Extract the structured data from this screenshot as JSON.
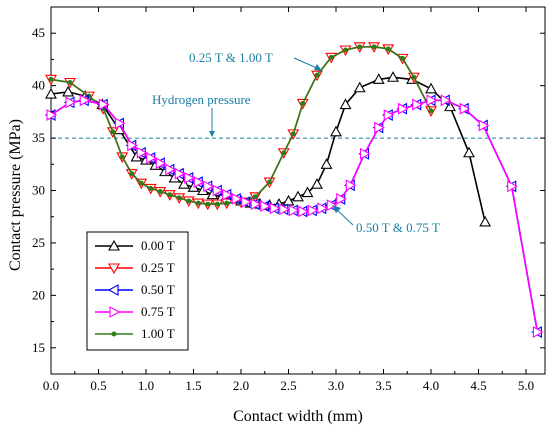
{
  "chart_data": {
    "type": "line",
    "xlabel": "Contact width (mm)",
    "ylabel": "Contact pressure (MPa)",
    "xlim": [
      0.0,
      5.2
    ],
    "ylim": [
      12.5,
      47.5
    ],
    "xticks": [
      "0.0",
      "0.5",
      "1.0",
      "1.5",
      "2.0",
      "2.5",
      "3.0",
      "3.5",
      "4.0",
      "4.5",
      "5.0"
    ],
    "yticks": [
      "15",
      "20",
      "25",
      "30",
      "35",
      "40",
      "45"
    ],
    "xtick_values": [
      0.0,
      0.5,
      1.0,
      1.5,
      2.0,
      2.5,
      3.0,
      3.5,
      4.0,
      4.5,
      5.0
    ],
    "ytick_values": [
      15,
      20,
      25,
      30,
      35,
      40,
      45
    ],
    "reference_line": {
      "label": "Hydrogen pressure",
      "y": 35,
      "color": "#1c7fa6"
    },
    "annotations": [
      {
        "text": "0.25 T & 1.00 T",
        "color": "#1c7fa6"
      },
      {
        "text": "0.50 T & 0.75 T",
        "color": "#1c7fa6"
      }
    ],
    "legend_position": "bottom-left",
    "series": [
      {
        "name": "0.00 T",
        "color": "#000000",
        "marker": "triangle-up",
        "x": [
          0.0,
          0.18,
          0.36,
          0.54,
          0.72,
          0.9,
          1.0,
          1.1,
          1.2,
          1.3,
          1.4,
          1.5,
          1.6,
          1.7,
          1.8,
          1.9,
          2.0,
          2.1,
          2.2,
          2.3,
          2.4,
          2.5,
          2.6,
          2.7,
          2.8,
          2.9,
          3.0,
          3.1,
          3.25,
          3.45,
          3.6,
          3.8,
          4.0,
          4.2,
          4.4,
          4.57
        ],
        "y": [
          39.2,
          39.4,
          39.0,
          38.2,
          35.8,
          33.2,
          32.9,
          32.4,
          31.8,
          31.2,
          30.6,
          30.3,
          30.0,
          29.6,
          29.4,
          29.2,
          29.0,
          28.8,
          28.7,
          28.6,
          28.7,
          29.0,
          29.4,
          29.8,
          30.6,
          32.5,
          35.6,
          38.2,
          39.8,
          40.6,
          40.8,
          40.6,
          39.7,
          38.0,
          33.6,
          27.0
        ]
      },
      {
        "name": "0.25 T",
        "color": "#ff0000",
        "marker": "triangle-down",
        "x": [
          0.0,
          0.2,
          0.4,
          0.55,
          0.65,
          0.75,
          0.85,
          0.95,
          1.05,
          1.15,
          1.25,
          1.35,
          1.45,
          1.55,
          1.65,
          1.75,
          1.85,
          2.0,
          2.15,
          2.3,
          2.45,
          2.55,
          2.65,
          2.8,
          2.95,
          3.1,
          3.25,
          3.4,
          3.55,
          3.7,
          3.82,
          4.0
        ],
        "y": [
          40.6,
          40.3,
          39.0,
          37.8,
          35.6,
          33.2,
          31.6,
          30.7,
          30.2,
          29.9,
          29.6,
          29.3,
          29.0,
          28.8,
          28.7,
          28.7,
          28.8,
          28.9,
          29.4,
          30.8,
          33.6,
          35.4,
          38.3,
          41.0,
          42.7,
          43.4,
          43.7,
          43.7,
          43.5,
          42.6,
          40.8,
          37.6
        ]
      },
      {
        "name": "0.50 T",
        "color": "#0000ff",
        "marker": "triangle-left",
        "x": [
          0.0,
          0.2,
          0.35,
          0.55,
          0.72,
          0.85,
          0.95,
          1.05,
          1.15,
          1.25,
          1.35,
          1.45,
          1.55,
          1.65,
          1.75,
          1.85,
          1.95,
          2.05,
          2.15,
          2.25,
          2.35,
          2.45,
          2.55,
          2.65,
          2.75,
          2.85,
          2.95,
          3.05,
          3.15,
          3.3,
          3.45,
          3.55,
          3.7,
          3.85,
          4.0,
          4.15,
          4.35,
          4.55,
          4.85,
          5.12
        ],
        "y": [
          37.2,
          38.4,
          38.6,
          38.2,
          36.4,
          34.3,
          33.6,
          33.1,
          32.6,
          32.0,
          31.6,
          31.2,
          30.8,
          30.4,
          30.0,
          29.6,
          29.2,
          28.9,
          28.7,
          28.5,
          28.3,
          28.2,
          28.1,
          28.0,
          28.1,
          28.3,
          28.6,
          29.2,
          30.5,
          33.5,
          36.0,
          37.2,
          37.8,
          38.2,
          38.6,
          38.6,
          37.8,
          36.2,
          30.4,
          16.5
        ]
      },
      {
        "name": "0.75 T",
        "color": "#ff00ff",
        "marker": "triangle-right",
        "x": [
          0.0,
          0.2,
          0.35,
          0.55,
          0.72,
          0.85,
          0.95,
          1.05,
          1.15,
          1.25,
          1.35,
          1.45,
          1.55,
          1.65,
          1.75,
          1.85,
          1.95,
          2.05,
          2.15,
          2.25,
          2.35,
          2.45,
          2.55,
          2.65,
          2.75,
          2.85,
          2.95,
          3.05,
          3.15,
          3.3,
          3.45,
          3.55,
          3.7,
          3.85,
          4.0,
          4.15,
          4.35,
          4.55,
          4.85,
          5.12
        ],
        "y": [
          37.2,
          38.4,
          38.6,
          38.2,
          36.4,
          34.3,
          33.6,
          33.1,
          32.6,
          32.0,
          31.6,
          31.2,
          30.8,
          30.4,
          30.0,
          29.6,
          29.2,
          28.9,
          28.7,
          28.5,
          28.3,
          28.2,
          28.1,
          28.0,
          28.1,
          28.3,
          28.6,
          29.2,
          30.5,
          33.5,
          36.0,
          37.2,
          37.8,
          38.2,
          38.6,
          38.6,
          37.8,
          36.2,
          30.4,
          16.5
        ]
      },
      {
        "name": "1.00 T",
        "color": "#2e7d1a",
        "marker": "dot",
        "x": [
          0.0,
          0.2,
          0.4,
          0.55,
          0.65,
          0.75,
          0.85,
          0.95,
          1.05,
          1.15,
          1.25,
          1.35,
          1.45,
          1.55,
          1.65,
          1.75,
          1.85,
          2.0,
          2.15,
          2.3,
          2.45,
          2.55,
          2.65,
          2.8,
          2.95,
          3.1,
          3.25,
          3.4,
          3.55,
          3.7,
          3.82,
          4.0
        ],
        "y": [
          40.6,
          40.3,
          39.0,
          37.8,
          35.6,
          33.2,
          31.6,
          30.7,
          30.2,
          29.9,
          29.6,
          29.3,
          29.0,
          28.8,
          28.7,
          28.7,
          28.8,
          28.9,
          29.4,
          30.8,
          33.6,
          35.4,
          38.3,
          41.0,
          42.7,
          43.4,
          43.7,
          43.7,
          43.5,
          42.6,
          40.8,
          37.6
        ]
      }
    ]
  }
}
